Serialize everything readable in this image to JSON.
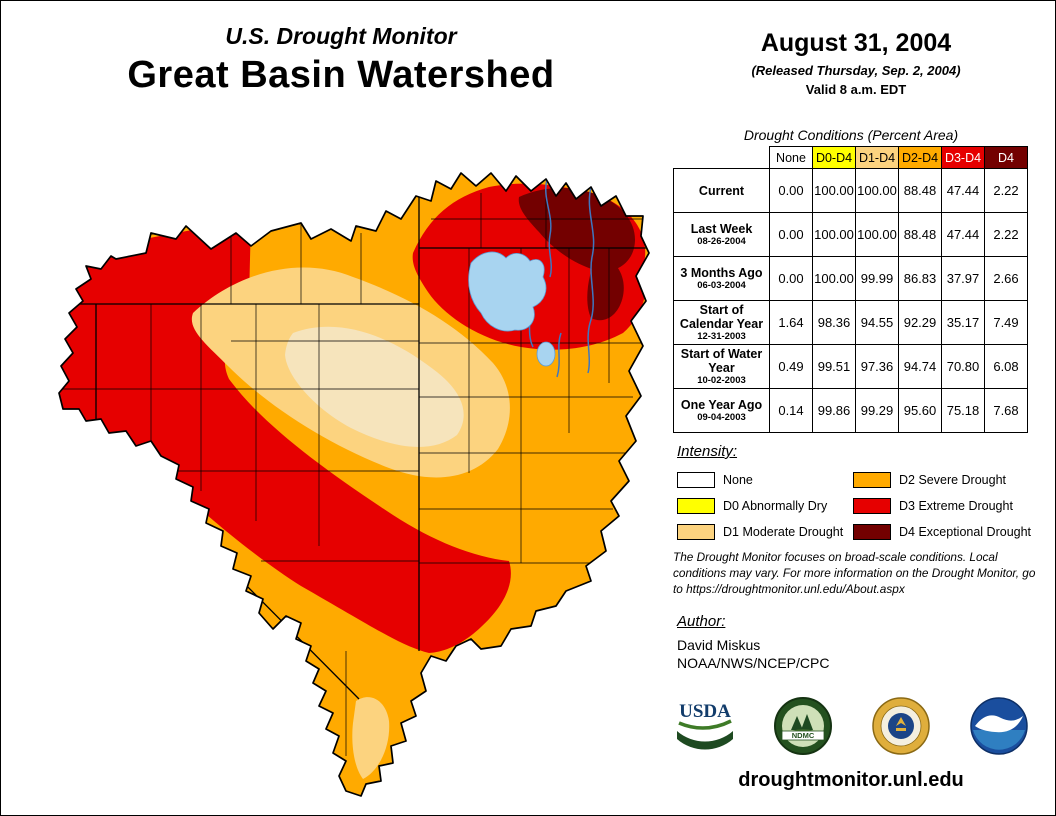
{
  "palette": {
    "none": "#FFFFFF",
    "d0": "#FFFF00",
    "d1": "#FCD37F",
    "d1_light": "#F6E4BC",
    "d2": "#FFAA00",
    "d3": "#E60000",
    "d4": "#730000",
    "lake": "#A8D4F0",
    "lake_edge": "#5B9BD5",
    "river": "#3F76BF"
  },
  "header": {
    "monitor_title": "U.S. Drought Monitor",
    "region_title": "Great Basin Watershed",
    "date": "August 31, 2004",
    "released": "(Released Thursday, Sep. 2, 2004)",
    "valid": "Valid 8 a.m. EDT"
  },
  "table": {
    "title": "Drought Conditions (Percent Area)",
    "columns": [
      {
        "label": "None",
        "bg": "#FFFFFF",
        "fg": "#000000"
      },
      {
        "label": "D0-D4",
        "bg": "#FFFF00",
        "fg": "#000000"
      },
      {
        "label": "D1-D4",
        "bg": "#FCD37F",
        "fg": "#000000"
      },
      {
        "label": "D2-D4",
        "bg": "#FFAA00",
        "fg": "#000000"
      },
      {
        "label": "D3-D4",
        "bg": "#E60000",
        "fg": "#FFFFFF"
      },
      {
        "label": "D4",
        "bg": "#730000",
        "fg": "#FFFFFF"
      }
    ],
    "rows": [
      {
        "label": "Current",
        "date": "",
        "values": [
          "0.00",
          "100.00",
          "100.00",
          "88.48",
          "47.44",
          "2.22"
        ]
      },
      {
        "label": "Last Week",
        "date": "08-26-2004",
        "values": [
          "0.00",
          "100.00",
          "100.00",
          "88.48",
          "47.44",
          "2.22"
        ]
      },
      {
        "label": "3 Months Ago",
        "date": "06-03-2004",
        "values": [
          "0.00",
          "100.00",
          "99.99",
          "86.83",
          "37.97",
          "2.66"
        ]
      },
      {
        "label": "Start of Calendar Year",
        "date": "12-31-2003",
        "values": [
          "1.64",
          "98.36",
          "94.55",
          "92.29",
          "35.17",
          "7.49"
        ]
      },
      {
        "label": "Start of Water Year",
        "date": "10-02-2003",
        "values": [
          "0.49",
          "99.51",
          "97.36",
          "94.74",
          "70.80",
          "6.08"
        ]
      },
      {
        "label": "One Year Ago",
        "date": "09-04-2003",
        "values": [
          "0.14",
          "99.86",
          "99.29",
          "95.60",
          "75.18",
          "7.68"
        ]
      }
    ]
  },
  "legend": {
    "title": "Intensity:",
    "items": [
      {
        "label": "None",
        "color": "#FFFFFF"
      },
      {
        "label": "D0 Abnormally Dry",
        "color": "#FFFF00"
      },
      {
        "label": "D1 Moderate Drought",
        "color": "#FCD37F"
      },
      {
        "label": "D2 Severe Drought",
        "color": "#FFAA00"
      },
      {
        "label": "D3 Extreme Drought",
        "color": "#E60000"
      },
      {
        "label": "D4 Exceptional Drought",
        "color": "#730000"
      }
    ]
  },
  "notes": "The Drought Monitor focuses on broad-scale conditions. Local conditions may vary. For more information on the Drought Monitor, go to https://droughtmonitor.unl.edu/About.aspx",
  "author": {
    "heading": "Author:",
    "name": "David Miskus",
    "org": "NOAA/NWS/NCEP/CPC"
  },
  "logos": {
    "usda_label": "USDA",
    "ndmc_label": "NDMC"
  },
  "footer": {
    "url": "droughtmonitor.unl.edu"
  }
}
